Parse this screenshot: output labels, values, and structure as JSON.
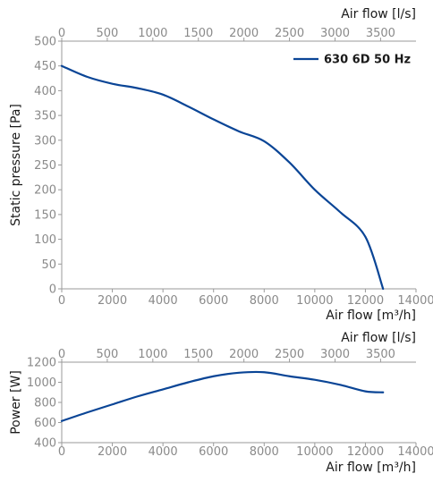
{
  "chart_data": [
    {
      "type": "line",
      "ylabel": "Static pressure [Pa]",
      "xlabel_bottom": "Air flow [m³/h]",
      "xlabel_top": "Air flow [l/s]",
      "xlim_bottom": [
        0,
        14000
      ],
      "xticks_bottom": [
        0,
        2000,
        4000,
        6000,
        8000,
        10000,
        12000,
        14000
      ],
      "xticks_top": [
        0,
        500,
        1000,
        1500,
        2000,
        2500,
        3000,
        3500
      ],
      "ylim": [
        0,
        500
      ],
      "yticks": [
        0,
        50,
        100,
        150,
        200,
        250,
        300,
        350,
        400,
        450,
        500
      ],
      "grid": false,
      "legend_position": "top-right",
      "series": [
        {
          "name": "630 6D 50 Hz",
          "color": "#0a4596",
          "x": [
            0,
            1000,
            2000,
            3000,
            4000,
            5000,
            6000,
            7000,
            8000,
            9000,
            10000,
            11000,
            12000,
            12700
          ],
          "y": [
            450,
            428,
            414,
            405,
            392,
            368,
            342,
            318,
            298,
            255,
            200,
            155,
            105,
            0
          ]
        }
      ]
    },
    {
      "type": "line",
      "ylabel": "Power [W]",
      "xlabel_bottom": "Air flow [m³/h]",
      "xlabel_top": "Air flow [l/s]",
      "xlim_bottom": [
        0,
        14000
      ],
      "xticks_bottom": [
        0,
        2000,
        4000,
        6000,
        8000,
        10000,
        12000,
        14000
      ],
      "xticks_top": [
        0,
        500,
        1000,
        1500,
        2000,
        2500,
        3000,
        3500
      ],
      "ylim": [
        400,
        1200
      ],
      "yticks": [
        400,
        600,
        800,
        1000,
        1200
      ],
      "grid": false,
      "series": [
        {
          "color": "#0a4596",
          "x": [
            0,
            1000,
            2000,
            3000,
            4000,
            5000,
            6000,
            7000,
            8000,
            9000,
            10000,
            11000,
            12000,
            12700
          ],
          "y": [
            615,
            700,
            780,
            860,
            930,
            1000,
            1060,
            1095,
            1100,
            1060,
            1025,
            975,
            910,
            900
          ]
        }
      ]
    }
  ]
}
